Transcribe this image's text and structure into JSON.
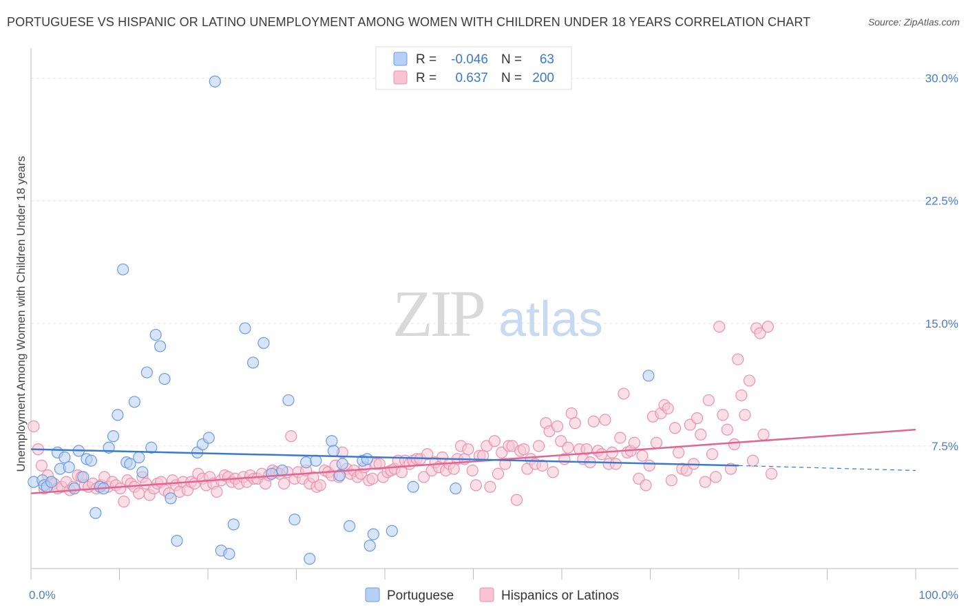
{
  "chart_data": {
    "type": "scatter",
    "title": "PORTUGUESE VS HISPANIC OR LATINO UNEMPLOYMENT AMONG WOMEN WITH CHILDREN UNDER 18 YEARS CORRELATION CHART",
    "source": "Source: ZipAtlas.com",
    "ylabel": "Unemployment Among Women with Children Under 18 years",
    "xlabel": "",
    "xlim": [
      0,
      100
    ],
    "ylim": [
      0,
      31.5
    ],
    "x_ticks": [
      "0.0%",
      "100.0%"
    ],
    "y_ticks": [
      {
        "value": 7.5,
        "label": "7.5%"
      },
      {
        "value": 15.0,
        "label": "15.0%"
      },
      {
        "value": 22.5,
        "label": "22.5%"
      },
      {
        "value": 30.0,
        "label": "30.0%"
      }
    ],
    "grid": true,
    "watermark": {
      "zip": "ZIP",
      "atlas": "atlas"
    },
    "legend_position": "top-center",
    "legend_stats": [
      {
        "r_label": "R =",
        "r_value": "-0.046",
        "n_label": "N =",
        "n_value": "63"
      },
      {
        "r_label": "R =",
        "r_value": "0.637",
        "n_label": "N =",
        "n_value": "200"
      }
    ],
    "colors": {
      "portuguese_fill": "#b8d0f4",
      "portuguese_stroke": "#6a9be0",
      "portuguese_line": "#3b78d0",
      "hispanic_fill": "#f8c4d4",
      "hispanic_stroke": "#e992ae",
      "hispanic_line": "#e06691",
      "tick_text": "#4a7cc4"
    },
    "series": [
      {
        "name": "Portuguese",
        "trend": {
          "x0": 0,
          "y0": 7.3,
          "x1": 80,
          "y1": 6.3,
          "dashed_to": 100,
          "dashed_y": 6.0
        },
        "points": [
          [
            0.3,
            5.3
          ],
          [
            1.3,
            5.4
          ],
          [
            1.5,
            5.1
          ],
          [
            1.8,
            5.0
          ],
          [
            2.3,
            5.3
          ],
          [
            3.0,
            7.1
          ],
          [
            3.3,
            6.1
          ],
          [
            3.8,
            6.8
          ],
          [
            4.3,
            6.2
          ],
          [
            4.9,
            4.9
          ],
          [
            5.4,
            7.2
          ],
          [
            5.9,
            5.6
          ],
          [
            6.3,
            6.7
          ],
          [
            6.8,
            6.6
          ],
          [
            7.3,
            3.4
          ],
          [
            7.8,
            5.0
          ],
          [
            8.2,
            4.9
          ],
          [
            8.8,
            7.4
          ],
          [
            9.3,
            8.1
          ],
          [
            9.8,
            9.4
          ],
          [
            10.4,
            18.3
          ],
          [
            10.8,
            6.5
          ],
          [
            11.2,
            6.4
          ],
          [
            11.7,
            10.2
          ],
          [
            12.2,
            6.8
          ],
          [
            12.6,
            5.9
          ],
          [
            13.1,
            12.0
          ],
          [
            13.6,
            7.4
          ],
          [
            14.1,
            14.3
          ],
          [
            14.6,
            13.6
          ],
          [
            15.1,
            11.6
          ],
          [
            15.8,
            4.3
          ],
          [
            16.5,
            1.7
          ],
          [
            18.8,
            7.1
          ],
          [
            19.4,
            7.6
          ],
          [
            20.1,
            8.0
          ],
          [
            20.8,
            29.8
          ],
          [
            21.5,
            1.1
          ],
          [
            22.4,
            0.9
          ],
          [
            22.9,
            2.7
          ],
          [
            24.2,
            14.7
          ],
          [
            25.1,
            12.6
          ],
          [
            26.3,
            13.8
          ],
          [
            27.2,
            5.8
          ],
          [
            28.4,
            6.0
          ],
          [
            29.1,
            10.3
          ],
          [
            29.8,
            3.0
          ],
          [
            31.1,
            6.5
          ],
          [
            31.5,
            0.6
          ],
          [
            32.2,
            6.6
          ],
          [
            34.0,
            7.8
          ],
          [
            34.2,
            7.2
          ],
          [
            34.9,
            5.7
          ],
          [
            35.2,
            6.4
          ],
          [
            36.0,
            2.6
          ],
          [
            37.5,
            6.6
          ],
          [
            38.0,
            6.7
          ],
          [
            38.3,
            1.4
          ],
          [
            38.7,
            2.1
          ],
          [
            40.8,
            2.3
          ],
          [
            43.2,
            5.0
          ],
          [
            48.0,
            4.9
          ],
          [
            69.8,
            11.8
          ]
        ]
      },
      {
        "name": "Hispanics or Latinos",
        "trend": {
          "x0": 0,
          "y0": 4.6,
          "x1": 100,
          "y1": 8.5
        },
        "points": [
          [
            0.3,
            8.7
          ],
          [
            0.8,
            7.3
          ],
          [
            1.2,
            6.3
          ],
          [
            1.5,
            4.9
          ],
          [
            1.9,
            5.7
          ],
          [
            2.3,
            5.3
          ],
          [
            2.6,
            5.2
          ],
          [
            3.0,
            4.9
          ],
          [
            3.5,
            5.0
          ],
          [
            4.0,
            5.3
          ],
          [
            4.4,
            4.8
          ],
          [
            4.8,
            5.0
          ],
          [
            5.3,
            5.7
          ],
          [
            5.7,
            5.6
          ],
          [
            6.1,
            5.1
          ],
          [
            6.5,
            5.0
          ],
          [
            7.0,
            5.2
          ],
          [
            7.4,
            4.9
          ],
          [
            7.9,
            5.1
          ],
          [
            8.3,
            5.6
          ],
          [
            8.7,
            5.0
          ],
          [
            9.2,
            5.3
          ],
          [
            9.6,
            5.1
          ],
          [
            10.1,
            4.9
          ],
          [
            10.5,
            4.1
          ],
          [
            10.9,
            5.4
          ],
          [
            11.3,
            5.2
          ],
          [
            11.7,
            5.0
          ],
          [
            12.2,
            4.6
          ],
          [
            12.6,
            5.6
          ],
          [
            13.0,
            5.2
          ],
          [
            13.4,
            4.5
          ],
          [
            13.9,
            4.9
          ],
          [
            14.3,
            5.2
          ],
          [
            14.7,
            5.3
          ],
          [
            15.1,
            4.8
          ],
          [
            15.6,
            4.6
          ],
          [
            16.0,
            5.4
          ],
          [
            16.4,
            5.1
          ],
          [
            16.8,
            4.7
          ],
          [
            17.2,
            5.3
          ],
          [
            17.7,
            4.8
          ],
          [
            18.1,
            5.3
          ],
          [
            18.5,
            5.2
          ],
          [
            18.9,
            5.8
          ],
          [
            19.4,
            5.5
          ],
          [
            19.8,
            5.1
          ],
          [
            20.2,
            5.6
          ],
          [
            20.6,
            5.2
          ],
          [
            21.0,
            4.7
          ],
          [
            21.5,
            5.4
          ],
          [
            21.9,
            5.7
          ],
          [
            22.3,
            5.6
          ],
          [
            22.7,
            5.3
          ],
          [
            23.1,
            5.5
          ],
          [
            23.5,
            5.2
          ],
          [
            24.0,
            5.6
          ],
          [
            24.4,
            5.3
          ],
          [
            24.8,
            5.7
          ],
          [
            25.2,
            5.5
          ],
          [
            25.6,
            5.5
          ],
          [
            26.1,
            5.8
          ],
          [
            26.5,
            5.2
          ],
          [
            26.9,
            5.7
          ],
          [
            27.3,
            6.0
          ],
          [
            27.7,
            5.9
          ],
          [
            28.1,
            5.8
          ],
          [
            28.6,
            5.2
          ],
          [
            29.0,
            5.9
          ],
          [
            29.4,
            8.1
          ],
          [
            29.8,
            5.5
          ],
          [
            30.2,
            5.9
          ],
          [
            30.7,
            5.5
          ],
          [
            31.1,
            6.0
          ],
          [
            31.5,
            5.2
          ],
          [
            31.9,
            5.6
          ],
          [
            32.3,
            5.0
          ],
          [
            32.7,
            5.1
          ],
          [
            33.2,
            6.0
          ],
          [
            33.6,
            5.9
          ],
          [
            34.0,
            5.7
          ],
          [
            34.4,
            6.3
          ],
          [
            34.8,
            5.6
          ],
          [
            35.2,
            7.1
          ],
          [
            35.7,
            6.1
          ],
          [
            36.1,
            5.8
          ],
          [
            36.5,
            6.0
          ],
          [
            36.9,
            5.6
          ],
          [
            37.3,
            5.8
          ],
          [
            37.7,
            6.2
          ],
          [
            38.2,
            5.4
          ],
          [
            38.6,
            5.5
          ],
          [
            39.0,
            6.4
          ],
          [
            39.4,
            6.4
          ],
          [
            39.8,
            5.6
          ],
          [
            40.3,
            5.9
          ],
          [
            40.7,
            6.0
          ],
          [
            41.1,
            6.1
          ],
          [
            41.5,
            6.6
          ],
          [
            41.9,
            5.9
          ],
          [
            42.3,
            6.6
          ],
          [
            42.8,
            6.4
          ],
          [
            43.2,
            6.6
          ],
          [
            43.6,
            6.7
          ],
          [
            44.0,
            6.7
          ],
          [
            44.4,
            5.6
          ],
          [
            44.8,
            7.0
          ],
          [
            45.3,
            6.0
          ],
          [
            45.7,
            6.5
          ],
          [
            46.1,
            6.2
          ],
          [
            46.5,
            6.8
          ],
          [
            46.9,
            6.0
          ],
          [
            47.3,
            6.4
          ],
          [
            47.8,
            6.1
          ],
          [
            48.2,
            6.7
          ],
          [
            48.6,
            7.5
          ],
          [
            49.0,
            6.7
          ],
          [
            49.4,
            7.3
          ],
          [
            49.9,
            6.0
          ],
          [
            50.3,
            5.1
          ],
          [
            50.7,
            6.9
          ],
          [
            51.1,
            6.9
          ],
          [
            51.5,
            7.5
          ],
          [
            51.9,
            5.0
          ],
          [
            52.4,
            7.8
          ],
          [
            52.8,
            5.8
          ],
          [
            53.2,
            7.1
          ],
          [
            53.6,
            6.4
          ],
          [
            54.0,
            7.5
          ],
          [
            54.4,
            7.5
          ],
          [
            54.9,
            4.2
          ],
          [
            55.3,
            7.2
          ],
          [
            55.7,
            7.3
          ],
          [
            56.1,
            6.1
          ],
          [
            56.5,
            6.7
          ],
          [
            57.0,
            6.4
          ],
          [
            57.4,
            7.5
          ],
          [
            57.8,
            6.3
          ],
          [
            58.2,
            8.9
          ],
          [
            58.6,
            8.4
          ],
          [
            59.0,
            5.9
          ],
          [
            59.5,
            8.7
          ],
          [
            59.9,
            7.8
          ],
          [
            60.3,
            6.7
          ],
          [
            60.7,
            7.4
          ],
          [
            61.1,
            9.5
          ],
          [
            61.5,
            8.9
          ],
          [
            62.0,
            7.3
          ],
          [
            62.4,
            6.7
          ],
          [
            62.8,
            7.3
          ],
          [
            63.2,
            6.5
          ],
          [
            63.6,
            9.0
          ],
          [
            64.1,
            7.2
          ],
          [
            64.5,
            7.0
          ],
          [
            64.9,
            9.1
          ],
          [
            65.3,
            6.4
          ],
          [
            65.7,
            7.1
          ],
          [
            66.1,
            6.4
          ],
          [
            66.6,
            8.0
          ],
          [
            67.0,
            10.7
          ],
          [
            67.4,
            7.1
          ],
          [
            67.8,
            7.2
          ],
          [
            68.2,
            7.7
          ],
          [
            68.7,
            5.5
          ],
          [
            69.1,
            6.9
          ],
          [
            69.5,
            5.1
          ],
          [
            69.9,
            6.3
          ],
          [
            70.3,
            9.3
          ],
          [
            70.7,
            7.7
          ],
          [
            71.2,
            9.5
          ],
          [
            71.6,
            10.0
          ],
          [
            72.0,
            9.8
          ],
          [
            72.4,
            5.4
          ],
          [
            72.8,
            8.6
          ],
          [
            73.2,
            7.1
          ],
          [
            73.6,
            6.1
          ],
          [
            74.1,
            6.0
          ],
          [
            74.5,
            8.8
          ],
          [
            74.9,
            6.4
          ],
          [
            75.3,
            9.2
          ],
          [
            75.7,
            8.2
          ],
          [
            76.2,
            5.3
          ],
          [
            76.6,
            10.3
          ],
          [
            77.0,
            7.0
          ],
          [
            77.4,
            5.6
          ],
          [
            77.8,
            14.8
          ],
          [
            78.2,
            9.4
          ],
          [
            78.7,
            8.5
          ],
          [
            79.1,
            6.1
          ],
          [
            79.5,
            7.6
          ],
          [
            79.9,
            12.8
          ],
          [
            80.3,
            10.6
          ],
          [
            80.7,
            9.4
          ],
          [
            81.2,
            11.5
          ],
          [
            81.6,
            6.6
          ],
          [
            82.0,
            14.7
          ],
          [
            82.4,
            14.4
          ],
          [
            82.8,
            8.2
          ],
          [
            83.3,
            14.8
          ],
          [
            83.7,
            5.8
          ]
        ]
      }
    ]
  }
}
